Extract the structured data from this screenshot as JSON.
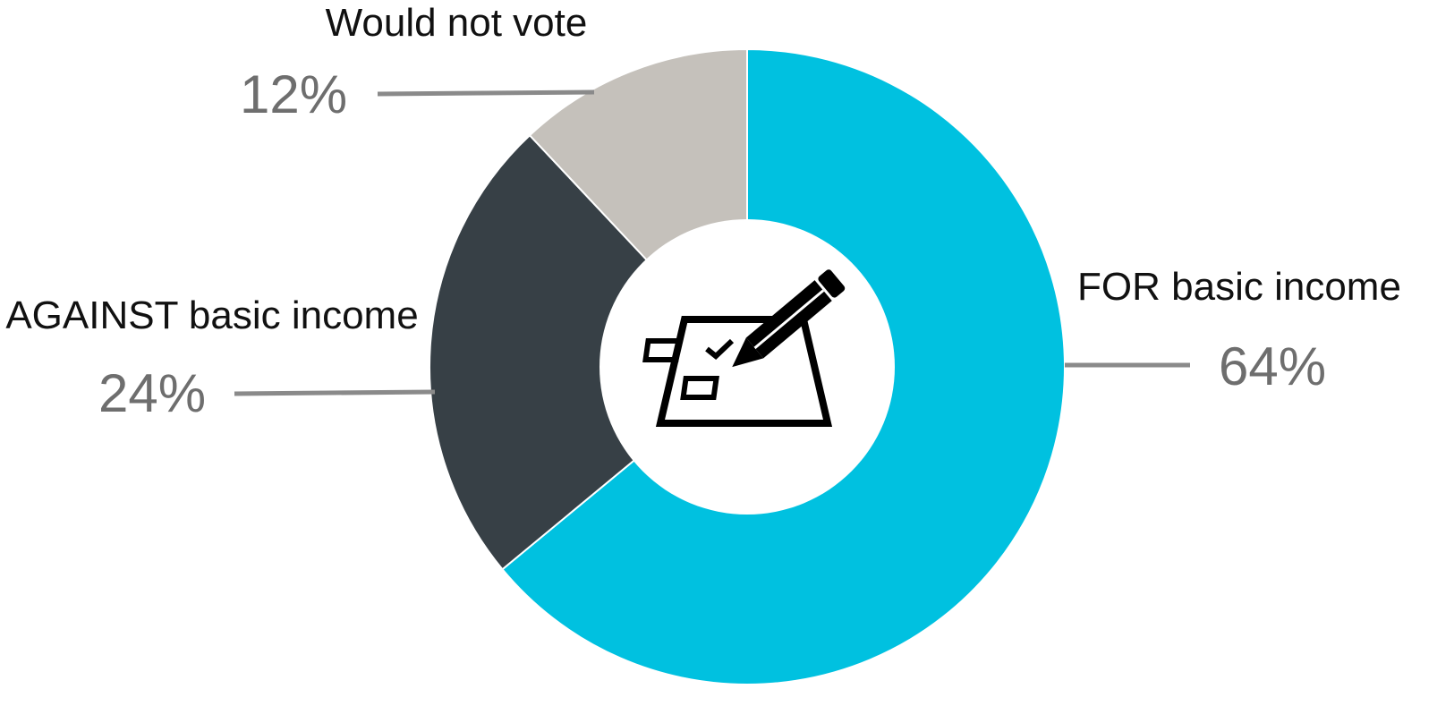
{
  "chart_data": {
    "type": "pie",
    "variant": "donut",
    "title": "",
    "center_icon": "ballot-checkbox-pencil-icon",
    "legend": "none",
    "slices": [
      {
        "label": "FOR basic income",
        "value": 64,
        "value_label": "64%",
        "color": "#00c1e0"
      },
      {
        "label": "AGAINST basic income",
        "value": 24,
        "value_label": "24%",
        "color": "#374046"
      },
      {
        "label": "Would not vote",
        "value": 12,
        "value_label": "12%",
        "color": "#c5c1bb"
      }
    ]
  }
}
